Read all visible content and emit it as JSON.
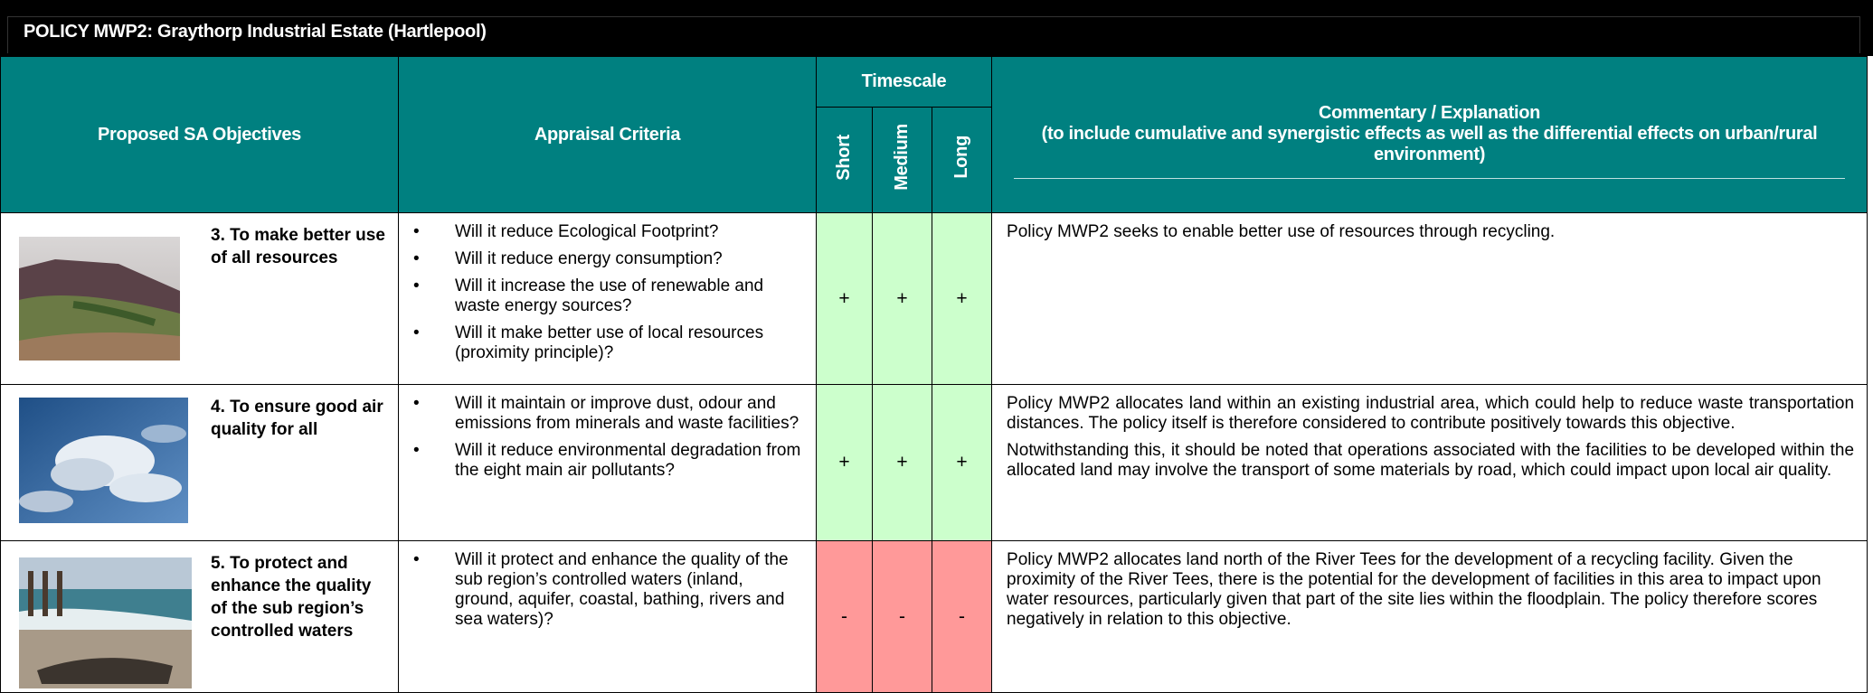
{
  "header": {
    "title": "POLICY MWP2: Graythorp Industrial Estate (Hartlepool)"
  },
  "table": {
    "columns": {
      "objectives": "Proposed SA Objectives",
      "criteria": "Appraisal Criteria",
      "timescale": "Timescale",
      "short": "Short",
      "medium": "Medium",
      "long": "Long",
      "commentary_title": "Commentary / Explanation",
      "commentary_subtitle": "(to include cumulative and synergistic effects as well as the differential effects on urban/rural environment)"
    },
    "rows": [
      {
        "objective": "3. To make better use of all resources",
        "criteria": [
          "Will it reduce Ecological Footprint?",
          "Will it reduce energy consumption?",
          "Will it increase the use of renewable and waste energy sources?",
          "Will it make better use of local resources (proximity principle)?"
        ],
        "short": "+",
        "medium": "+",
        "long": "+",
        "color": "#ccffcc",
        "commentary": [
          "Policy MWP2 seeks to enable better use of resources through recycling."
        ]
      },
      {
        "objective": "4. To ensure good air quality for all",
        "criteria": [
          "Will it maintain or improve dust, odour and emissions from minerals and waste facilities?",
          "Will it reduce environmental degradation from the eight main air pollutants?"
        ],
        "short": "+",
        "medium": "+",
        "long": "+",
        "color": "#ccffcc",
        "commentary": [
          "Policy MWP2 allocates land within an existing industrial area, which could help to reduce waste transportation distances. The policy itself is therefore considered to contribute positively towards this objective.",
          "Notwithstanding this, it should be noted that operations associated with the facilities to be developed within the allocated land may involve the transport of some materials by road, which could impact upon local air quality."
        ]
      },
      {
        "objective": "5. To protect and enhance the quality of the sub region’s controlled waters",
        "criteria": [
          "Will it protect and enhance the quality of the sub region’s controlled waters (inland, ground, aquifer, coastal, bathing, rivers and sea waters)?"
        ],
        "short": "-",
        "medium": "-",
        "long": "-",
        "color": "#ff9999",
        "commentary": [
          "Policy MWP2 allocates land north of the River Tees for the development of a recycling facility. Given the proximity of the River Tees, there is the potential for the development of facilities in this area to impact upon water resources, particularly given that part of the site lies within the floodplain. The policy therefore scores negatively in relation to this objective."
        ]
      }
    ]
  }
}
